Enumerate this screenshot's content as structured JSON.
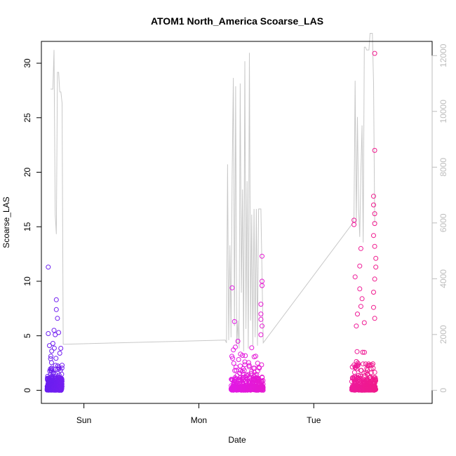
{
  "chart_data": {
    "type": "scatter",
    "title": "ATOM1 North_America Scoarse_LAS",
    "xlabel": "Date",
    "ylabel": "Scoarse_LAS",
    "x_ticks": [
      "Sun",
      "Mon",
      "Tue"
    ],
    "y_ticks": [
      "0",
      "5",
      "10",
      "15",
      "20",
      "25",
      "30"
    ],
    "y2_ticks": [
      "0",
      "2000",
      "4000",
      "6000",
      "8000",
      "10000",
      "12000"
    ],
    "ylim": [
      -1.2,
      32.0
    ],
    "y2lim": [
      -470,
      12510
    ],
    "x_units": "days since the first plotted point (approx.)",
    "xlim": [
      -0.05,
      3.35
    ],
    "grid": false,
    "colors": {
      "points_start": "#6a1ef0",
      "points_mid": "#e019f0",
      "points_end": "#f01a8c",
      "line": "#c8c8c8",
      "frame": "#000000",
      "right_axis": "#bdbdbd"
    },
    "series": [
      {
        "name": "Scoarse_LAS",
        "axis": "left",
        "style": "points",
        "clusters": [
          {
            "x": [
              0.0,
              0.13
            ],
            "highlights": [
              [
                0.01,
                11.3
              ],
              [
                0.01,
                5.2
              ],
              [
                0.02,
                4.1
              ],
              [
                0.08,
                8.3
              ],
              [
                0.08,
                7.4
              ],
              [
                0.09,
                6.6
              ],
              [
                0.06,
                5.5
              ],
              [
                0.07,
                5.1
              ],
              [
                0.1,
                5.3
              ],
              [
                0.05,
                4.3
              ],
              [
                0.11,
                3.4
              ],
              [
                0.13,
                2.3
              ],
              [
                0.04,
                3.6
              ],
              [
                0.03,
                2.9
              ]
            ]
          },
          {
            "x": [
              1.6,
              1.88
            ],
            "highlights": [
              [
                1.61,
                9.4
              ],
              [
                1.63,
                6.3
              ],
              [
                1.62,
                3.7
              ],
              [
                1.66,
                4.5
              ],
              [
                1.78,
                3.9
              ],
              [
                1.87,
                12.3
              ],
              [
                1.87,
                10.0
              ],
              [
                1.87,
                9.6
              ],
              [
                1.86,
                7.9
              ],
              [
                1.86,
                7.0
              ],
              [
                1.86,
                6.5
              ],
              [
                1.87,
                5.9
              ],
              [
                1.86,
                5.1
              ],
              [
                1.72,
                2.6
              ],
              [
                1.7,
                3.2
              ]
            ]
          },
          {
            "x": [
              2.65,
              2.86
            ],
            "highlights": [
              [
                2.67,
                15.6
              ],
              [
                2.67,
                15.2
              ],
              [
                2.73,
                13.0
              ],
              [
                2.68,
                10.4
              ],
              [
                2.72,
                11.4
              ],
              [
                2.72,
                9.3
              ],
              [
                2.73,
                7.7
              ],
              [
                2.7,
                7.0
              ],
              [
                2.69,
                5.9
              ],
              [
                2.74,
                8.4
              ],
              [
                2.76,
                6.2
              ],
              [
                2.85,
                30.9
              ],
              [
                2.85,
                22.0
              ],
              [
                2.84,
                17.8
              ],
              [
                2.84,
                17.0
              ],
              [
                2.85,
                16.2
              ],
              [
                2.85,
                15.3
              ],
              [
                2.84,
                14.2
              ],
              [
                2.85,
                13.2
              ],
              [
                2.86,
                12.1
              ],
              [
                2.86,
                11.3
              ],
              [
                2.85,
                10.2
              ],
              [
                2.84,
                9.0
              ],
              [
                2.84,
                7.6
              ],
              [
                2.85,
                6.6
              ]
            ]
          }
        ]
      },
      {
        "name": "",
        "axis": "right",
        "style": "line",
        "x": [
          0.03,
          0.05,
          0.06,
          0.07,
          0.08,
          0.09,
          0.1,
          0.11,
          0.12,
          0.13,
          0.14,
          1.55,
          1.56,
          1.57,
          1.58,
          1.59,
          1.6,
          1.61,
          1.62,
          1.63,
          1.64,
          1.65,
          1.66,
          1.67,
          1.68,
          1.69,
          1.7,
          1.71,
          1.72,
          1.73,
          1.74,
          1.75,
          1.76,
          1.77,
          1.78,
          1.79,
          1.8,
          1.81,
          1.82,
          1.83,
          1.84,
          1.86,
          1.88,
          2.66,
          2.67,
          2.68,
          2.69,
          2.7,
          2.71,
          2.72,
          2.73,
          2.74,
          2.75,
          2.76,
          2.77,
          2.78,
          2.79,
          2.8,
          2.81,
          2.82,
          2.83,
          2.84,
          2.85
        ],
        "y": [
          10800,
          10800,
          12200,
          6300,
          5600,
          11400,
          11400,
          10700,
          10700,
          10300,
          1650,
          1800,
          1700,
          8100,
          1800,
          5200,
          1900,
          7700,
          11200,
          2300,
          10900,
          1600,
          2500,
          1500,
          11000,
          3500,
          7200,
          1400,
          11800,
          2200,
          7500,
          1500,
          12100,
          2500,
          6300,
          1600,
          6500,
          1900,
          6500,
          1600,
          6500,
          6500,
          1700,
          6000,
          6200,
          11100,
          6000,
          9800,
          6500,
          5500,
          7800,
          9500,
          5300,
          12300,
          12300,
          12200,
          12200,
          12200,
          12800,
          12800,
          12800,
          11000,
          6000
        ]
      }
    ]
  }
}
